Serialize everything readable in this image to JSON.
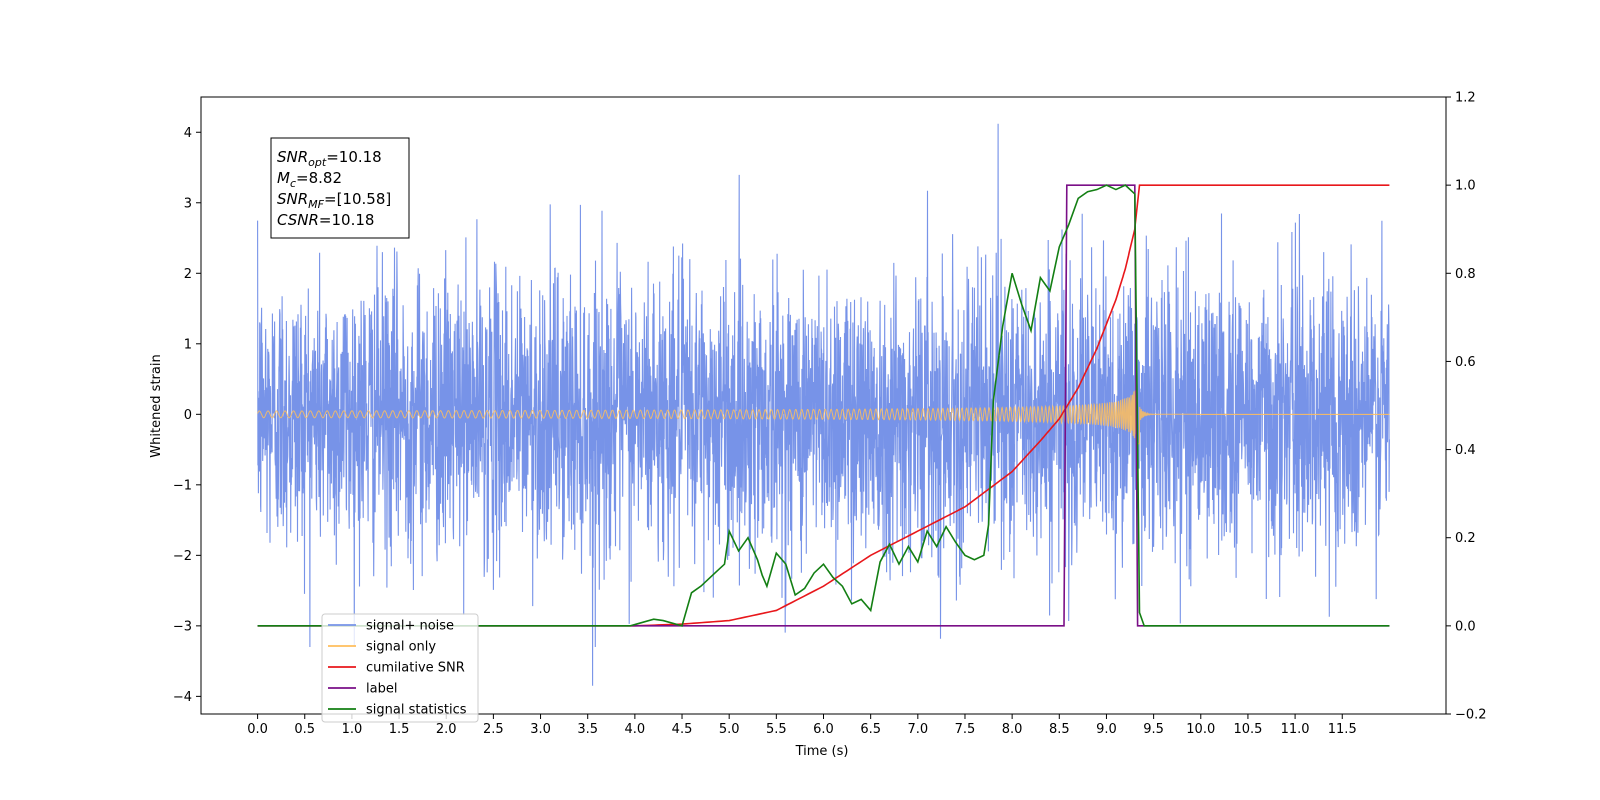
{
  "chart_data": {
    "type": "line",
    "xlabel": "Time (s)",
    "ylabel": "Whitened strain",
    "xlim": [
      -0.6,
      12.6
    ],
    "ylim": [
      -4.25,
      4.5
    ],
    "y2lim": [
      -0.2,
      1.2
    ],
    "xticks": [
      0.0,
      0.5,
      1.0,
      1.5,
      2.0,
      2.5,
      3.0,
      3.5,
      4.0,
      4.5,
      5.0,
      5.5,
      6.0,
      6.5,
      7.0,
      7.5,
      8.0,
      8.5,
      9.0,
      9.5,
      10.0,
      10.5,
      11.0,
      11.5
    ],
    "xtick_labels": [
      "0.0",
      "0.5",
      "1.0",
      "1.5",
      "2.0",
      "2.5",
      "3.0",
      "3.5",
      "4.0",
      "4.5",
      "5.0",
      "5.5",
      "6.0",
      "6.5",
      "7.0",
      "7.5",
      "8.0",
      "8.5",
      "9.0",
      "9.5",
      "10.0",
      "10.5",
      "11.0",
      "11.5"
    ],
    "yticks": [
      -4,
      -3,
      -2,
      -1,
      0,
      1,
      2,
      3,
      4
    ],
    "ytick_labels": [
      "−4",
      "−3",
      "−2",
      "−1",
      "0",
      "1",
      "2",
      "3",
      "4"
    ],
    "y2ticks": [
      -0.2,
      0.0,
      0.2,
      0.4,
      0.6,
      0.8,
      1.0,
      1.2
    ],
    "y2tick_labels": [
      "−0.2",
      "0.0",
      "0.2",
      "0.4",
      "0.6",
      "0.8",
      "1.0",
      "1.2"
    ],
    "noise": {
      "x_range": [
        0.0,
        12.0
      ],
      "typical_amplitude": 1.8,
      "peak_max": 4.12,
      "peak_min": -3.85,
      "color": "#7793e8"
    },
    "signal": {
      "x_range": [
        0.0,
        9.35
      ],
      "merger_time": 9.35,
      "peak_amplitude": 0.9,
      "color": "#ffbe5c"
    },
    "series": [
      {
        "name": "cumilative SNR",
        "color": "#e8171b",
        "axis": "right",
        "x": [
          0.0,
          4.0,
          4.5,
          5.0,
          5.5,
          6.0,
          6.5,
          7.0,
          7.5,
          8.0,
          8.3,
          8.5,
          8.7,
          8.9,
          9.1,
          9.2,
          9.3,
          9.35,
          12.0
        ],
        "y": [
          0.0,
          0.0,
          0.004,
          0.012,
          0.035,
          0.09,
          0.16,
          0.215,
          0.27,
          0.35,
          0.42,
          0.47,
          0.54,
          0.63,
          0.74,
          0.81,
          0.9,
          1.0,
          1.0
        ]
      },
      {
        "name": "label",
        "color": "#7a0f87",
        "axis": "right",
        "x": [
          0.0,
          8.55,
          8.58,
          9.3,
          9.33,
          9.4,
          12.0
        ],
        "y": [
          0.0,
          0.0,
          1.0,
          1.0,
          0.0,
          0.0,
          0.0
        ]
      },
      {
        "name": "signal statistics",
        "color": "#137f13",
        "axis": "right",
        "x": [
          0.0,
          3.95,
          4.2,
          4.3,
          4.5,
          4.6,
          4.7,
          4.85,
          4.95,
          5.0,
          5.1,
          5.2,
          5.3,
          5.35,
          5.4,
          5.5,
          5.6,
          5.7,
          5.8,
          5.9,
          6.0,
          6.1,
          6.2,
          6.3,
          6.4,
          6.5,
          6.6,
          6.7,
          6.8,
          6.9,
          7.0,
          7.1,
          7.2,
          7.3,
          7.4,
          7.5,
          7.6,
          7.7,
          7.75,
          7.8,
          7.9,
          8.0,
          8.1,
          8.2,
          8.3,
          8.4,
          8.5,
          8.6,
          8.7,
          8.8,
          8.9,
          9.0,
          9.1,
          9.2,
          9.3,
          9.35,
          9.4,
          9.5,
          12.0
        ],
        "y": [
          0.0,
          0.0,
          0.015,
          0.012,
          0.0,
          0.075,
          0.09,
          0.12,
          0.14,
          0.215,
          0.17,
          0.2,
          0.15,
          0.115,
          0.09,
          0.165,
          0.14,
          0.07,
          0.085,
          0.12,
          0.14,
          0.11,
          0.09,
          0.05,
          0.06,
          0.035,
          0.145,
          0.185,
          0.14,
          0.18,
          0.145,
          0.215,
          0.18,
          0.225,
          0.19,
          0.16,
          0.15,
          0.16,
          0.23,
          0.51,
          0.68,
          0.8,
          0.73,
          0.67,
          0.79,
          0.76,
          0.86,
          0.91,
          0.97,
          0.985,
          0.99,
          1.0,
          0.99,
          1.0,
          0.98,
          0.03,
          0.0,
          0.0,
          0.0
        ]
      }
    ],
    "legend": {
      "placement": "lower-left",
      "entries": [
        {
          "label": "signal+ noise",
          "color": "#7793e8"
        },
        {
          "label": "signal only",
          "color": "#ffbe5c"
        },
        {
          "label": "cumilative SNR",
          "color": "#e8171b"
        },
        {
          "label": "label",
          "color": "#7a0f87"
        },
        {
          "label": "signal statistics",
          "color": "#137f13"
        }
      ]
    },
    "annotation": {
      "lines": [
        {
          "base": "SNR",
          "sub": "opt",
          "value": "=10.18"
        },
        {
          "base": "M",
          "sub": "c",
          "value": "=8.82"
        },
        {
          "base": "SNR",
          "sub": "MF",
          "value": "=[10.58]"
        },
        {
          "base": "CSNR",
          "sub": "",
          "value": "=10.18"
        }
      ]
    }
  }
}
